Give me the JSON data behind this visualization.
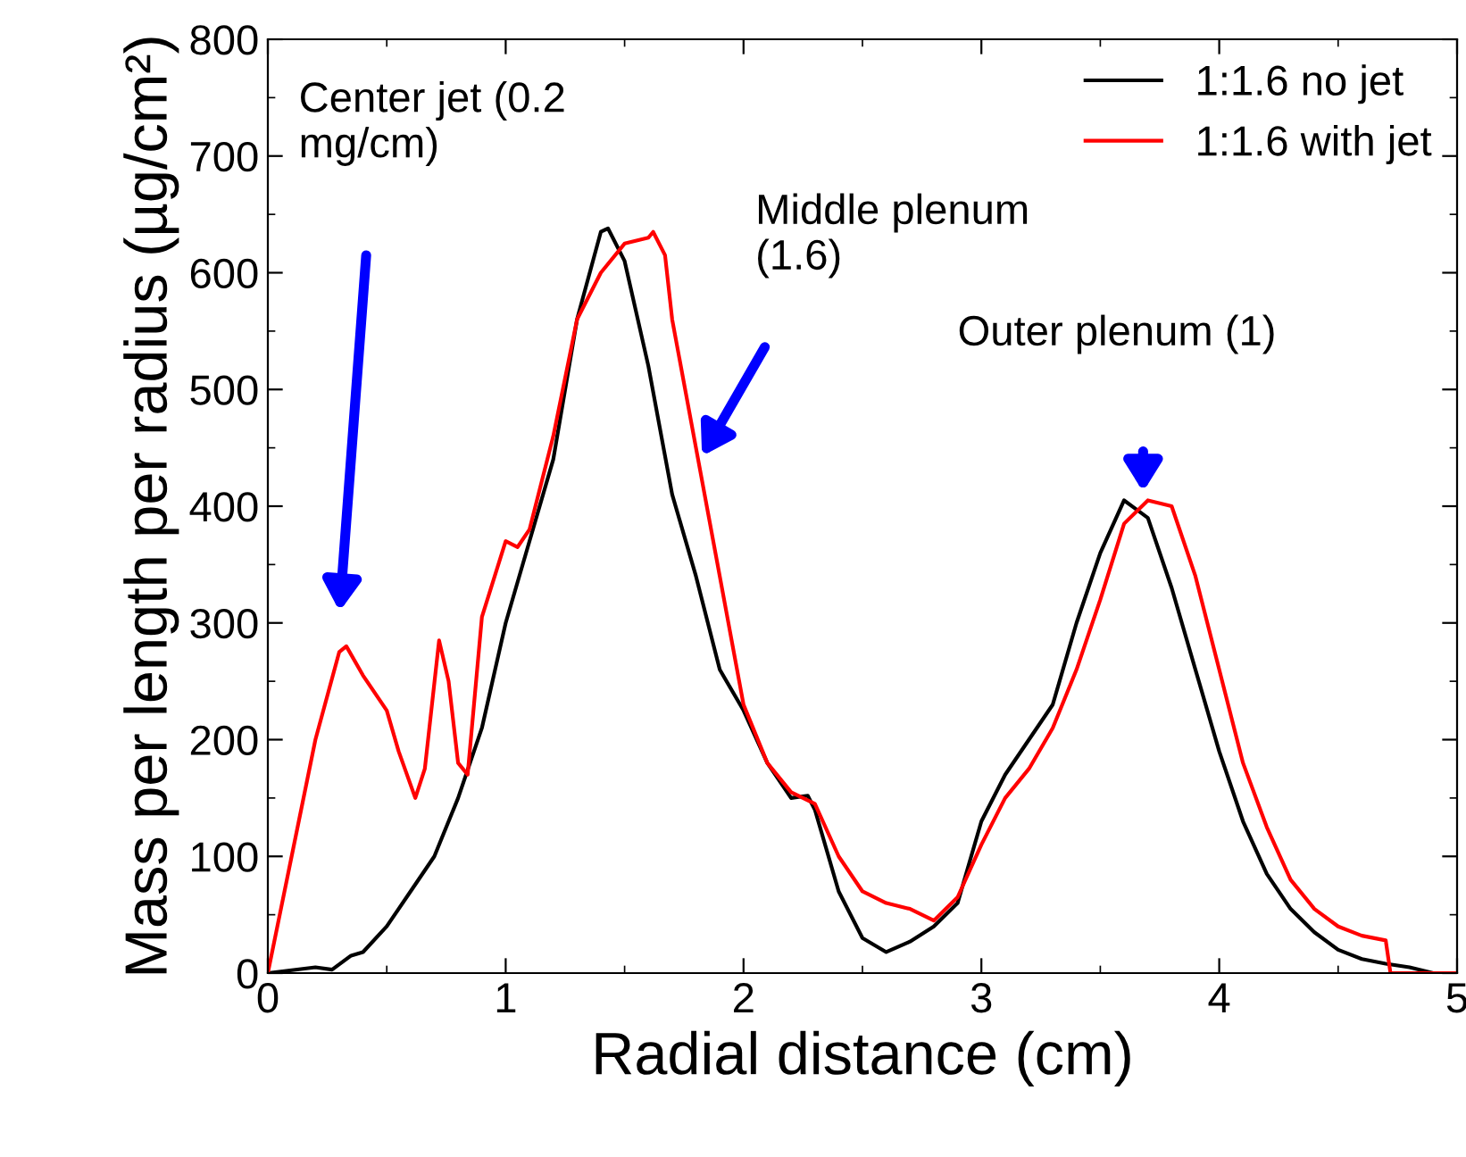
{
  "chart_data": {
    "type": "line",
    "xlabel": "Radial distance (cm)",
    "ylabel": "Mass per length per radius (µg/cm²)",
    "xlim": [
      0,
      5
    ],
    "xticks": [
      0,
      1,
      2,
      3,
      4,
      5
    ],
    "ylim": [
      0,
      800
    ],
    "yticks": [
      0,
      100,
      200,
      300,
      400,
      500,
      600,
      700,
      800
    ],
    "grid": false,
    "legend": "top right",
    "marker": "none",
    "line_style": "solid",
    "series": [
      {
        "name": "1:1.6 no jet",
        "color": "#000000",
        "x": [
          0,
          0.2,
          0.27,
          0.35,
          0.4,
          0.5,
          0.6,
          0.7,
          0.8,
          0.9,
          1.0,
          1.1,
          1.2,
          1.3,
          1.4,
          1.43,
          1.5,
          1.6,
          1.7,
          1.8,
          1.9,
          2.0,
          2.1,
          2.2,
          2.27,
          2.3,
          2.4,
          2.5,
          2.6,
          2.7,
          2.8,
          2.9,
          3.0,
          3.1,
          3.2,
          3.3,
          3.4,
          3.5,
          3.6,
          3.7,
          3.8,
          3.9,
          4.0,
          4.1,
          4.2,
          4.3,
          4.4,
          4.5,
          4.6,
          4.7,
          4.8,
          4.9,
          5.0
        ],
        "values": [
          0,
          5,
          3,
          15,
          18,
          40,
          70,
          100,
          150,
          210,
          300,
          370,
          440,
          560,
          635,
          638,
          610,
          520,
          410,
          340,
          260,
          225,
          180,
          150,
          152,
          140,
          70,
          30,
          18,
          27,
          40,
          60,
          130,
          170,
          200,
          230,
          300,
          360,
          405,
          390,
          330,
          260,
          190,
          130,
          85,
          55,
          35,
          20,
          12,
          8,
          5,
          0,
          0
        ]
      },
      {
        "name": "1:1.6 with jet",
        "color": "#ff0000",
        "x": [
          0,
          0.1,
          0.2,
          0.3,
          0.33,
          0.4,
          0.5,
          0.55,
          0.62,
          0.66,
          0.72,
          0.76,
          0.8,
          0.84,
          0.9,
          1.0,
          1.05,
          1.1,
          1.2,
          1.3,
          1.4,
          1.5,
          1.6,
          1.62,
          1.67,
          1.7,
          1.8,
          1.9,
          2.0,
          2.1,
          2.2,
          2.3,
          2.4,
          2.5,
          2.6,
          2.7,
          2.8,
          2.9,
          3.0,
          3.1,
          3.2,
          3.3,
          3.4,
          3.5,
          3.6,
          3.7,
          3.8,
          3.9,
          4.0,
          4.1,
          4.2,
          4.3,
          4.4,
          4.5,
          4.6,
          4.7,
          4.72,
          5.0
        ],
        "values": [
          0,
          100,
          200,
          275,
          280,
          255,
          225,
          190,
          150,
          175,
          285,
          250,
          180,
          170,
          305,
          370,
          365,
          380,
          460,
          560,
          600,
          625,
          630,
          635,
          615,
          560,
          450,
          340,
          230,
          180,
          155,
          145,
          100,
          70,
          60,
          55,
          45,
          65,
          110,
          150,
          175,
          210,
          260,
          320,
          385,
          405,
          400,
          340,
          260,
          180,
          125,
          80,
          55,
          40,
          32,
          28,
          0,
          0
        ]
      }
    ],
    "annotations": [
      "Center jet (0.2\nmg/cm)",
      "Middle plenum\n(1.6)",
      "Outer plenum (1)"
    ]
  }
}
